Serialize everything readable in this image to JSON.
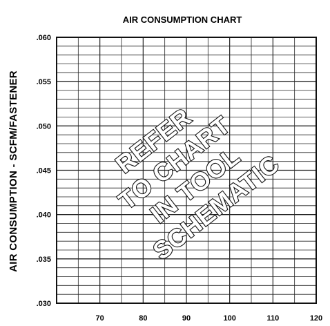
{
  "chart_data": {
    "type": "line",
    "title": "AIR CONSUMPTION CHART",
    "xlabel": "",
    "ylabel": "AIR CONSUMPTION - SCFM/FASTENER",
    "xlim": [
      60,
      120
    ],
    "ylim": [
      0.03,
      0.06
    ],
    "x_ticks": [
      "70",
      "80",
      "90",
      "100",
      "110",
      "120"
    ],
    "y_ticks": [
      ".030",
      ".035",
      ".040",
      ".045",
      ".050",
      ".055",
      ".060"
    ],
    "x_tick_values": [
      70,
      80,
      90,
      100,
      110,
      120
    ],
    "y_tick_values": [
      0.03,
      0.035,
      0.04,
      0.045,
      0.05,
      0.055,
      0.06
    ],
    "grid": true,
    "series": [],
    "annotation_lines": [
      "REFER",
      "TO CHART",
      "IN TOOL",
      "SCHEMATIC"
    ]
  }
}
